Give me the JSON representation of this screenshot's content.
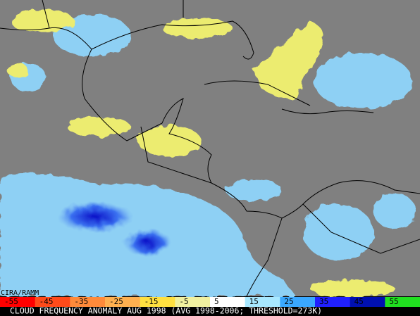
{
  "credit": "CIRA/RAMM",
  "colorbar": {
    "labels": [
      -55,
      -45,
      -35,
      -25,
      -15,
      -5,
      5,
      15,
      25,
      35,
      45,
      55
    ],
    "colors": [
      "#ff0000",
      "#ff4a1a",
      "#ff8a3a",
      "#ffb050",
      "#ffe040",
      "#f0f0a0",
      "#ffffff",
      "#a8e8ff",
      "#3aa8ff",
      "#2020ff",
      "#0010b0",
      "#20e020"
    ]
  },
  "caption": "CLOUD FREQUENCY ANOMALY AUG 1998 (AVG 1998-2006; THRESHOLD=273K)"
}
